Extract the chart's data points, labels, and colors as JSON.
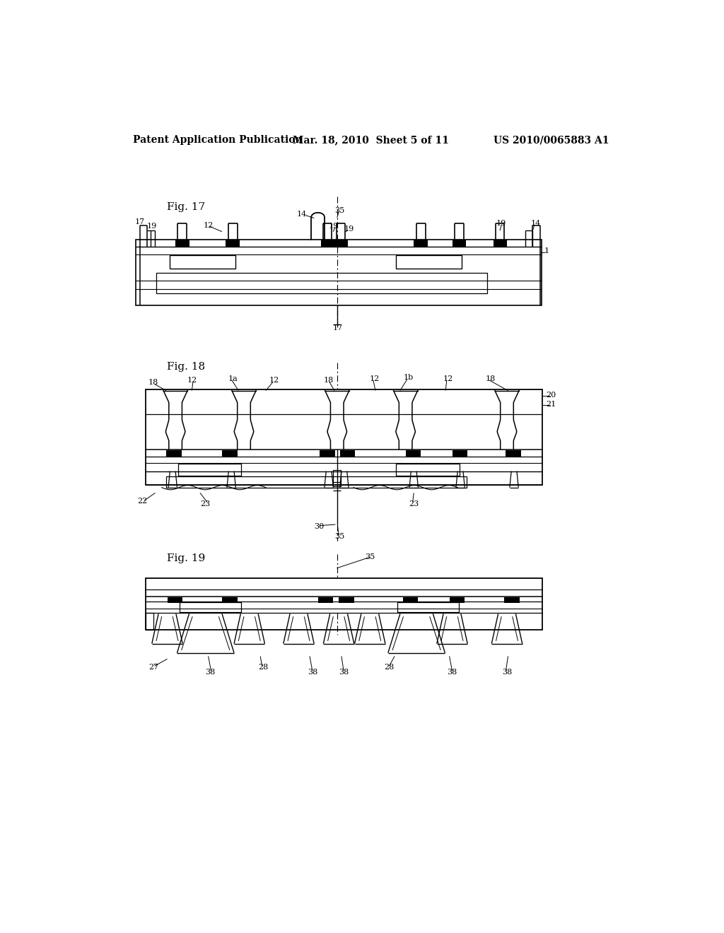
{
  "background_color": "#ffffff",
  "header_left": "Patent Application Publication",
  "header_center": "Mar. 18, 2010  Sheet 5 of 11",
  "header_right": "US 2010/0065883 A1",
  "fig17_label": "Fig. 17",
  "fig18_label": "Fig. 18",
  "fig19_label": "Fig. 19"
}
